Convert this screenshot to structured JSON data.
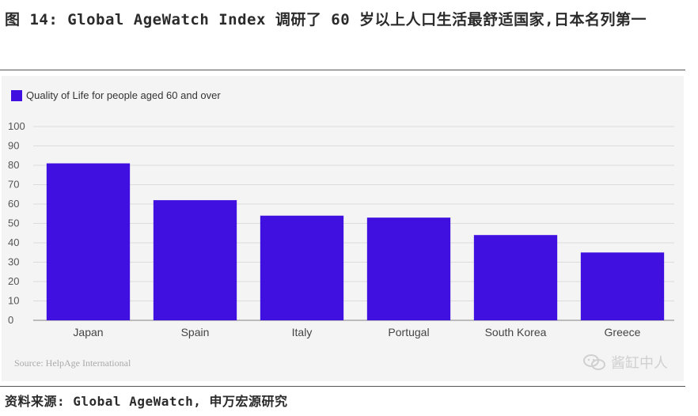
{
  "figure": {
    "title": "图 14: Global AgeWatch Index 调研了 60 岁以上人口生活最舒适国家,日本名列第一",
    "source_note": "Source: HelpAge International",
    "watermark_text": "酱缸中人",
    "footer": "资料来源: Global AgeWatch, 申万宏源研究"
  },
  "chart_data": {
    "type": "bar",
    "title": "",
    "xlabel": "",
    "ylabel": "",
    "categories": [
      "Japan",
      "Spain",
      "Italy",
      "Portugal",
      "South Korea",
      "Greece"
    ],
    "series": [
      {
        "name": "Quality of Life for people aged 60 and over",
        "values": [
          81,
          62,
          54,
          53,
          44,
          35
        ],
        "color": "#4010e0"
      }
    ],
    "ylim": [
      0,
      100
    ],
    "yticks": [
      0,
      10,
      20,
      30,
      40,
      50,
      60,
      70,
      80,
      90,
      100
    ],
    "grid": true,
    "legend_position": "top-left"
  },
  "icons": {
    "watermark": "wechat-icon"
  }
}
